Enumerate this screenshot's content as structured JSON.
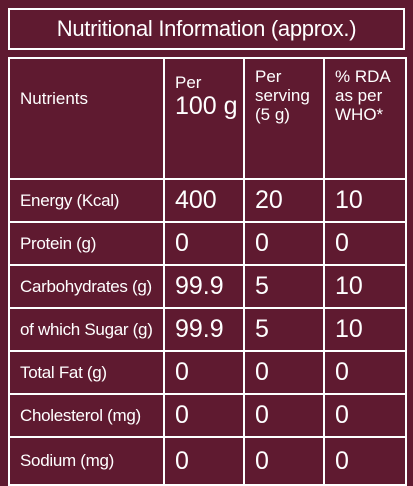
{
  "title": "Nutritional Information (approx.)",
  "table": {
    "header": [
      [
        "Nutrients"
      ],
      [
        "Per",
        "100 g"
      ],
      [
        "Per",
        "serving",
        "(5 g)"
      ],
      [
        "% RDA",
        "as per",
        "WHO*"
      ]
    ],
    "rows": [
      [
        "Energy (Kcal)",
        "400",
        "20",
        "10"
      ],
      [
        "Protein (g)",
        "0",
        "0",
        "0"
      ],
      [
        "Carbohydrates (g)",
        "99.9",
        "5",
        "10"
      ],
      [
        "of which Sugar (g)",
        "99.9",
        "5",
        "10"
      ],
      [
        "Total Fat (g)",
        "0",
        "0",
        "0"
      ],
      [
        "Cholesterol (mg)",
        "0",
        "0",
        "0"
      ],
      [
        "Sodium (mg)",
        "0",
        "0",
        "0"
      ]
    ]
  }
}
